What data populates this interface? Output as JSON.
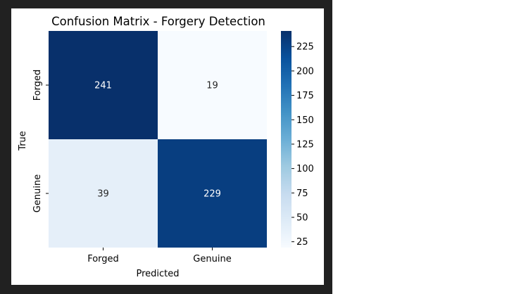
{
  "chart_data": {
    "type": "heatmap",
    "title": "Confusion Matrix - Forgery Detection",
    "xlabel": "Predicted",
    "ylabel": "True",
    "x_categories": [
      "Forged",
      "Genuine"
    ],
    "y_categories": [
      "Forged",
      "Genuine"
    ],
    "values": [
      [
        241,
        19
      ],
      [
        39,
        229
      ]
    ],
    "colormap": "Blues",
    "colorbar": {
      "min": 19,
      "max": 241,
      "ticks": [
        25,
        50,
        75,
        100,
        125,
        150,
        175,
        200,
        225
      ]
    },
    "low_color": "#f7fbff",
    "high_color": "#08306b"
  }
}
